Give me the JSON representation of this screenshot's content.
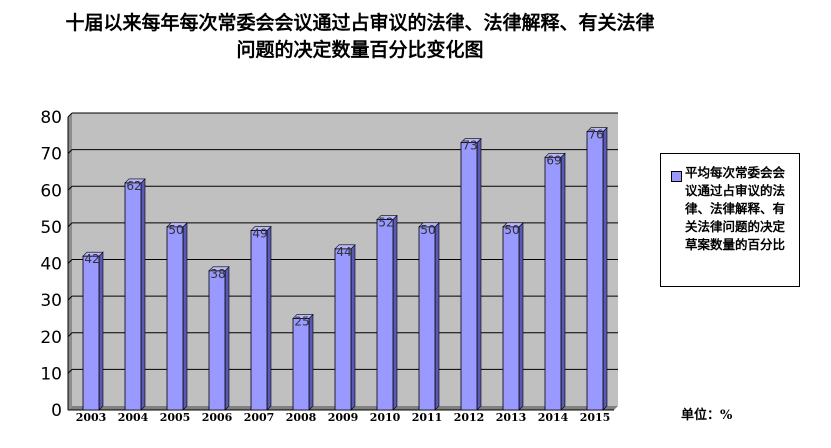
{
  "title": {
    "line1": "十届以来每年每次常委会会议通过占审议的法律、法律解释、有关法律",
    "line2": "问题的决定数量百分比变化图"
  },
  "unit_label": "单位：%",
  "chart_data": {
    "type": "bar",
    "title": "十届以来每年每次常委会会议通过占审议的法律、法律解释、有关法律问题的决定数量百分比变化图",
    "categories": [
      "2003",
      "2004",
      "2005",
      "2006",
      "2007",
      "2008",
      "2009",
      "2010",
      "2011",
      "2012",
      "2013",
      "2014",
      "2015"
    ],
    "series": [
      {
        "name": "平均每次常委会会议通过占审议的法律、法律解释、有关法律问题的决定草案数量的百分比",
        "values": [
          42,
          62,
          50,
          38,
          49,
          25,
          44,
          52,
          50,
          73,
          50,
          69,
          76
        ]
      }
    ],
    "xlabel": "",
    "ylabel": "",
    "ylim": [
      0,
      80
    ],
    "yticks": [
      0,
      10,
      20,
      30,
      40,
      50,
      60,
      70,
      80
    ],
    "grid": true,
    "legend": "right",
    "colors": {
      "bar": "#9999ff",
      "bar_dark": "#5a5ab4",
      "plot_bg": "#c0c0c0",
      "gridline": "#000000"
    }
  }
}
